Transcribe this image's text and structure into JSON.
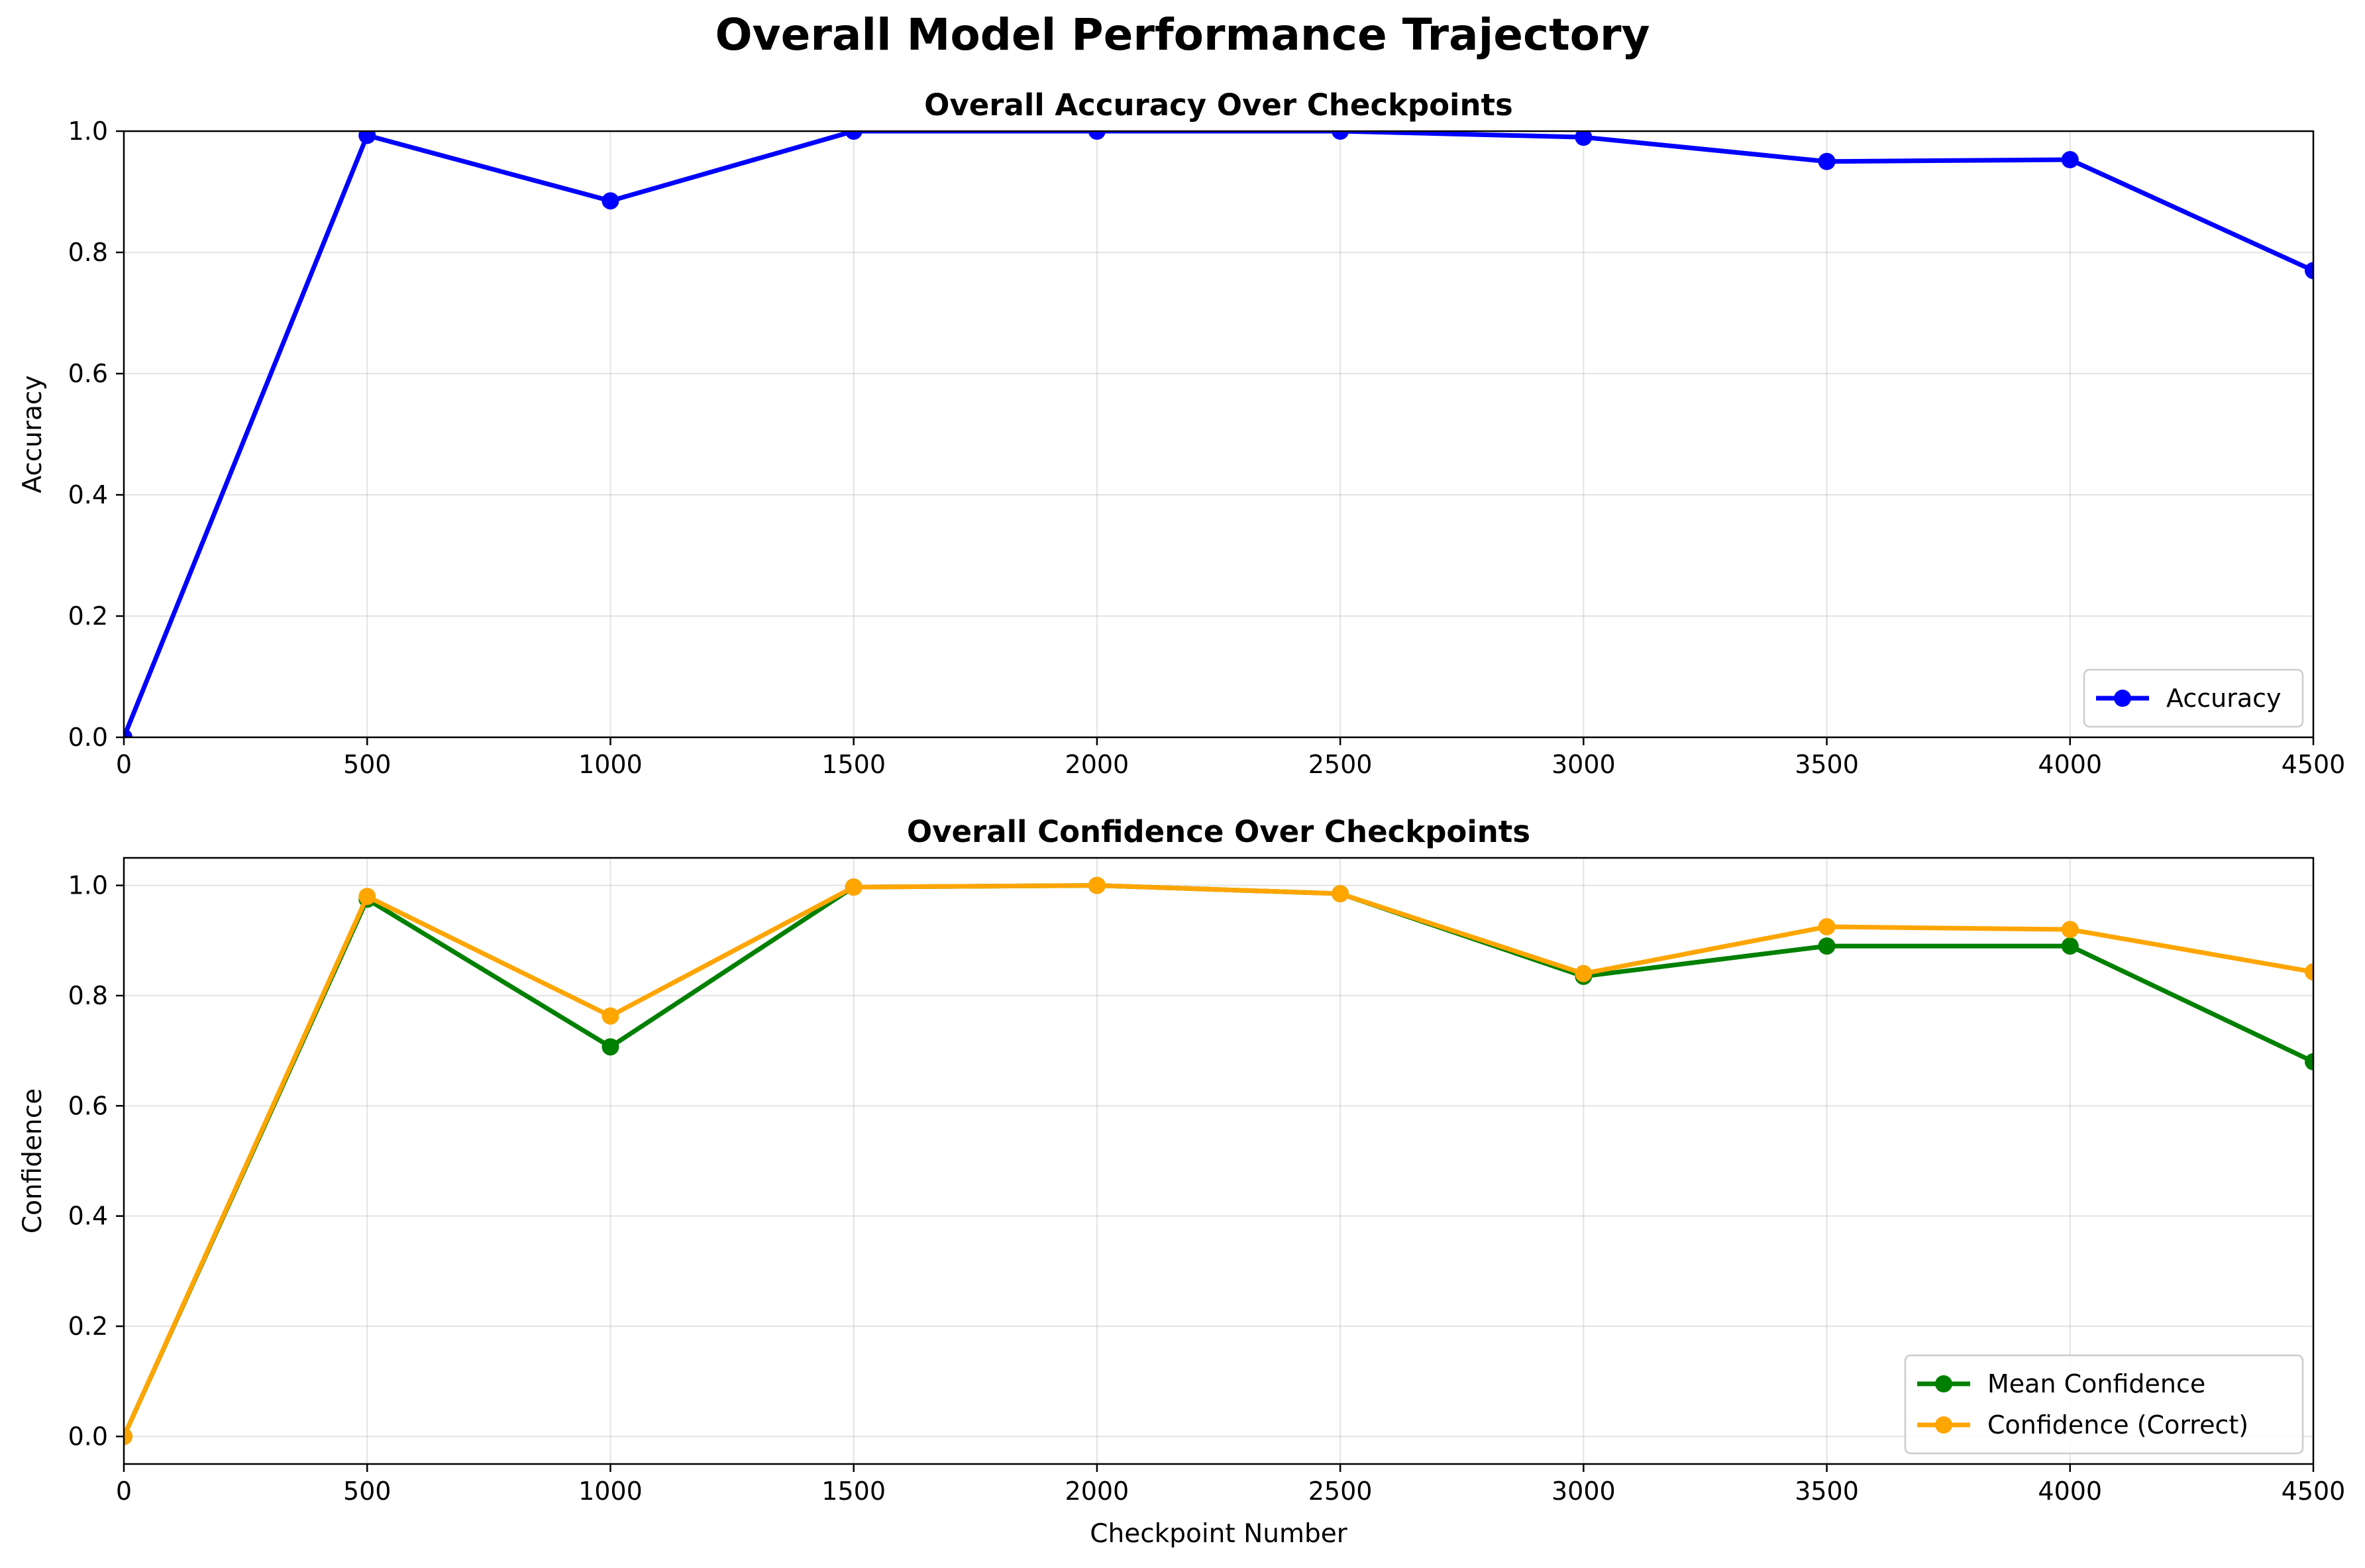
{
  "figure": {
    "suptitle": "Overall Model Performance Trajectory"
  },
  "chart_data": [
    {
      "type": "line",
      "title": "Overall Accuracy Over Checkpoints",
      "xlabel": "",
      "ylabel": "Accuracy",
      "xlim": [
        0,
        4500
      ],
      "ylim": [
        0,
        1.0
      ],
      "xticks": [
        0,
        500,
        1000,
        1500,
        2000,
        2500,
        3000,
        3500,
        4000,
        4500
      ],
      "yticks": [
        "0.0",
        "0.2",
        "0.4",
        "0.6",
        "0.8",
        "1.0"
      ],
      "grid": true,
      "legend_position": "lower right",
      "x": [
        0,
        500,
        1000,
        1500,
        2000,
        2500,
        3000,
        3500,
        4000,
        4500
      ],
      "series": [
        {
          "name": "Accuracy",
          "color": "#0000ff",
          "values": [
            0.0,
            0.993,
            0.885,
            1.0,
            1.0,
            1.0,
            0.99,
            0.95,
            0.953,
            0.77
          ]
        }
      ]
    },
    {
      "type": "line",
      "title": "Overall Confidence Over Checkpoints",
      "xlabel": "Checkpoint Number",
      "ylabel": "Confidence",
      "xlim": [
        0,
        4500
      ],
      "ylim": [
        -0.05,
        1.05
      ],
      "xticks": [
        0,
        500,
        1000,
        1500,
        2000,
        2500,
        3000,
        3500,
        4000,
        4500
      ],
      "yticks": [
        "0.0",
        "0.2",
        "0.4",
        "0.6",
        "0.8",
        "1.0"
      ],
      "grid": true,
      "legend_position": "lower right",
      "x": [
        0,
        500,
        1000,
        1500,
        2000,
        2500,
        3000,
        3500,
        4000,
        4500
      ],
      "series": [
        {
          "name": "Mean Confidence",
          "color": "#008000",
          "values": [
            0.0,
            0.975,
            0.707,
            0.997,
            1.0,
            0.985,
            0.835,
            0.89,
            0.89,
            0.68
          ]
        },
        {
          "name": "Confidence (Correct)",
          "color": "#ffa500",
          "values": [
            0.0,
            0.98,
            0.763,
            0.997,
            1.0,
            0.985,
            0.84,
            0.925,
            0.92,
            0.843
          ]
        }
      ]
    }
  ]
}
